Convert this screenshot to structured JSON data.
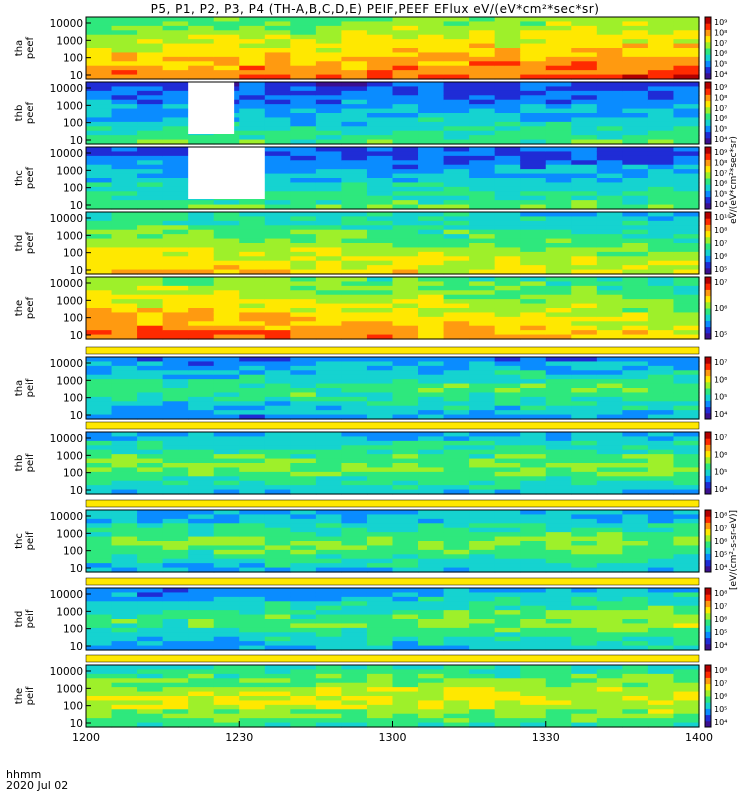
{
  "title": "P5, P1, P2, P3, P4 (TH-A,B,C,D,E) PEIF,PEEF EFlux eV/(eV*cm²*sec*sr)",
  "time_label": "hhmm",
  "date_label": "2020 Jul 02",
  "chart_data": {
    "type": "heatmap",
    "x_ticks": [
      "1200",
      "1230",
      "1300",
      "1330",
      "1400"
    ],
    "x_range_minutes": [
      0,
      120
    ],
    "y_ticks": [
      "10",
      "100",
      "1000",
      "10000"
    ],
    "colorbar_label": "[eV/(cm²-s-sr-eV)]",
    "colorbar_label_short": "eV/(eV*cm²*sec*sr)",
    "palette": [
      "#3b0f8f",
      "#1f2cd6",
      "#0a8cff",
      "#15d3d0",
      "#2ee87d",
      "#9ef02a",
      "#ffe800",
      "#ff9a10",
      "#ff2a00",
      "#b30000"
    ],
    "panels": [
      {
        "probe": "tha",
        "species": "peef",
        "cbar_ticks": [
          "10⁴",
          "10⁵",
          "10⁶",
          "10⁷",
          "10⁸",
          "10⁹"
        ],
        "base_level": 5.6,
        "trend": 0.9,
        "gap": null,
        "has_strip": false
      },
      {
        "probe": "thb",
        "species": "peef",
        "cbar_ticks": [
          "10⁴",
          "10⁵",
          "10⁶",
          "10⁷",
          "10⁸",
          "10⁹"
        ],
        "base_level": 2.6,
        "trend": 0.0,
        "gap": [
          20,
          29
        ],
        "has_strip": false
      },
      {
        "probe": "thc",
        "species": "peef",
        "cbar_ticks": [
          "10⁴",
          "10⁵",
          "10⁶",
          "10⁷",
          "10⁸",
          "10⁹"
        ],
        "base_level": 2.7,
        "trend": 0.0,
        "gap": [
          20,
          35
        ],
        "has_strip": false
      },
      {
        "probe": "thd",
        "species": "peef",
        "cbar_ticks": [
          "10⁵",
          "10⁶",
          "10⁷",
          "10⁸",
          "10¹⁰"
        ],
        "base_level": 5.2,
        "trend": -1.2,
        "gap": null,
        "has_strip": false
      },
      {
        "probe": "the",
        "species": "peef",
        "cbar_ticks": [
          "10⁵",
          "10⁶",
          "10⁷"
        ],
        "base_level": 6.4,
        "trend": -1.6,
        "gap": null,
        "has_strip": false
      },
      {
        "probe": "tha",
        "species": "peif",
        "cbar_ticks": [
          "10⁴",
          "10⁵",
          "10⁶",
          "10⁷"
        ],
        "base_level": 2.6,
        "trend": 0.4,
        "gap": null,
        "has_strip": true
      },
      {
        "probe": "thb",
        "species": "peif",
        "cbar_ticks": [
          "10⁴",
          "10⁵",
          "10⁶",
          "10⁷"
        ],
        "base_level": 3.4,
        "trend": 0.0,
        "gap": null,
        "has_strip": true
      },
      {
        "probe": "thc",
        "species": "peif",
        "cbar_ticks": [
          "10⁴",
          "10⁵",
          "10⁶",
          "10⁷",
          "10⁸"
        ],
        "base_level": 3.3,
        "trend": 0.0,
        "gap": null,
        "has_strip": true
      },
      {
        "probe": "thd",
        "species": "peif",
        "cbar_ticks": [
          "10⁴",
          "10⁵",
          "10⁶",
          "10⁷",
          "10⁸"
        ],
        "base_level": 2.6,
        "trend": 1.2,
        "gap": null,
        "has_strip": true
      },
      {
        "probe": "the",
        "species": "peif",
        "cbar_ticks": [
          "10⁴",
          "10⁵",
          "10⁶",
          "10⁷",
          "10⁸"
        ],
        "base_level": 4.4,
        "trend": 0.0,
        "gap": null,
        "has_strip": true
      }
    ]
  }
}
